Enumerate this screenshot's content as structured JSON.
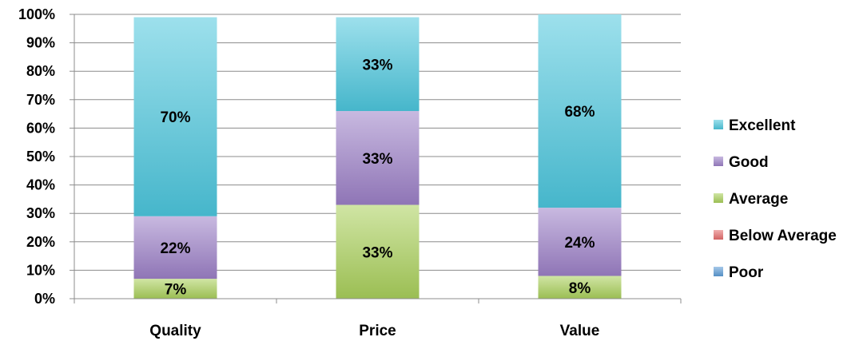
{
  "chart_data": {
    "type": "bar",
    "stacked": true,
    "categories": [
      "Quality",
      "Price",
      "Value"
    ],
    "series": [
      {
        "name": "Poor",
        "values": [
          0,
          0,
          0
        ],
        "color": "#5b9bd5"
      },
      {
        "name": "Below Average",
        "values": [
          0,
          0,
          0
        ],
        "color": "#e46c6c"
      },
      {
        "name": "Average",
        "values": [
          7,
          33,
          8
        ],
        "color": "#a9cf5a"
      },
      {
        "name": "Good",
        "values": [
          22,
          33,
          24
        ],
        "color": "#9b7fc6"
      },
      {
        "name": "Excellent",
        "values": [
          70,
          33,
          68
        ],
        "color": "#4cc6dd"
      }
    ],
    "data_labels": [
      {
        "series": "Average",
        "labels": [
          "7%",
          "33%",
          "8%"
        ]
      },
      {
        "series": "Good",
        "labels": [
          "22%",
          "33%",
          "24%"
        ]
      },
      {
        "series": "Excellent",
        "labels": [
          "70%",
          "33%",
          "68%"
        ]
      }
    ],
    "y_ticks": [
      "0%",
      "10%",
      "20%",
      "30%",
      "40%",
      "50%",
      "60%",
      "70%",
      "80%",
      "90%",
      "100%"
    ],
    "ylim": [
      0,
      100
    ],
    "grid": true,
    "legend_position": "right",
    "legend_order": [
      "Excellent",
      "Good",
      "Average",
      "Below Average",
      "Poor"
    ]
  }
}
